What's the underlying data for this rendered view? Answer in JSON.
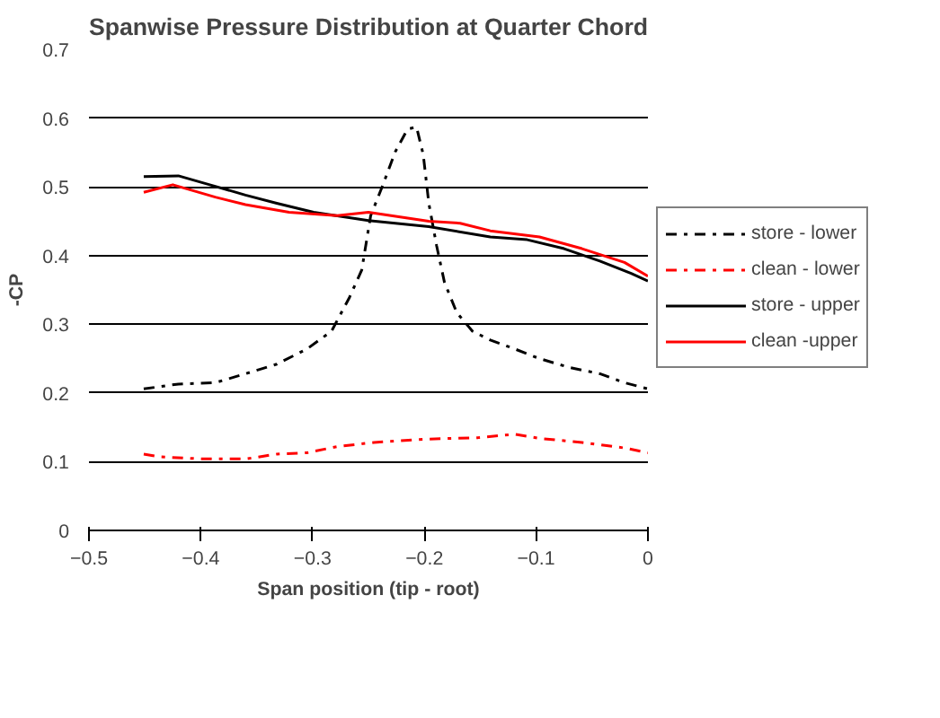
{
  "chart_data": {
    "type": "line",
    "title": "Spanwise Pressure Distribution at Quarter Chord",
    "xlabel": "Span position (tip - root)",
    "ylabel": "-CP",
    "xlim": [
      -0.5,
      0
    ],
    "xticks": [
      -0.5,
      -0.4,
      -0.3,
      -0.2,
      -0.1,
      0
    ],
    "ylim": [
      0,
      0.7
    ],
    "yticks": [
      0,
      0.1,
      0.2,
      0.3,
      0.4,
      0.5,
      0.6,
      0.7
    ],
    "grid": "y",
    "legend": "right",
    "marker": "none",
    "series": [
      {
        "name": "store - lower",
        "color": "#000000",
        "line_style": "dashdot",
        "x": [
          -0.451,
          -0.42,
          -0.387,
          -0.36,
          -0.332,
          -0.305,
          -0.283,
          -0.267,
          -0.256,
          -0.248,
          -0.237,
          -0.226,
          -0.215,
          -0.207,
          -0.201,
          -0.196,
          -0.189,
          -0.182,
          -0.171,
          -0.157,
          -0.141,
          -0.119,
          -0.097,
          -0.07,
          -0.043,
          -0.021,
          0
        ],
        "values": [
          0.206,
          0.213,
          0.215,
          0.228,
          0.242,
          0.264,
          0.29,
          0.339,
          0.379,
          0.458,
          0.503,
          0.551,
          0.584,
          0.587,
          0.547,
          0.476,
          0.414,
          0.361,
          0.317,
          0.29,
          0.277,
          0.264,
          0.25,
          0.237,
          0.228,
          0.215,
          0.206
        ]
      },
      {
        "name": "clean - lower",
        "color": "#ff0000",
        "line_style": "dashdot",
        "x": [
          -0.451,
          -0.436,
          -0.398,
          -0.36,
          -0.332,
          -0.305,
          -0.278,
          -0.245,
          -0.196,
          -0.152,
          -0.119,
          -0.097,
          -0.059,
          -0.021,
          0
        ],
        "values": [
          0.111,
          0.107,
          0.104,
          0.104,
          0.111,
          0.113,
          0.122,
          0.128,
          0.133,
          0.135,
          0.14,
          0.134,
          0.128,
          0.12,
          0.113
        ]
      },
      {
        "name": "store - upper",
        "color": "#000000",
        "line_style": "solid",
        "x": [
          -0.451,
          -0.42,
          -0.392,
          -0.36,
          -0.332,
          -0.299,
          -0.25,
          -0.196,
          -0.141,
          -0.108,
          -0.075,
          -0.043,
          -0.015,
          0
        ],
        "values": [
          0.515,
          0.516,
          0.503,
          0.488,
          0.476,
          0.463,
          0.451,
          0.442,
          0.427,
          0.423,
          0.41,
          0.392,
          0.374,
          0.363
        ]
      },
      {
        "name": "clean -upper",
        "color": "#ff0000",
        "line_style": "solid",
        "x": [
          -0.451,
          -0.425,
          -0.387,
          -0.36,
          -0.321,
          -0.278,
          -0.25,
          -0.196,
          -0.168,
          -0.141,
          -0.097,
          -0.059,
          -0.021,
          0
        ],
        "values": [
          0.492,
          0.503,
          0.485,
          0.474,
          0.463,
          0.458,
          0.463,
          0.45,
          0.447,
          0.436,
          0.427,
          0.41,
          0.39,
          0.37
        ]
      }
    ]
  }
}
